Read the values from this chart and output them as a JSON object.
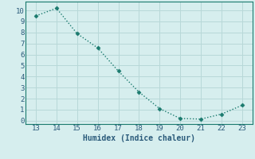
{
  "x": [
    13,
    14,
    15,
    16,
    17,
    18,
    19,
    20,
    21,
    22,
    23
  ],
  "y": [
    9.5,
    10.2,
    7.9,
    6.6,
    4.5,
    2.6,
    1.1,
    0.2,
    0.15,
    0.6,
    1.4
  ],
  "xlabel": "Humidex (Indice chaleur)",
  "xlim": [
    12.5,
    23.5
  ],
  "ylim": [
    -0.3,
    10.8
  ],
  "xticks": [
    13,
    14,
    15,
    16,
    17,
    18,
    19,
    20,
    21,
    22,
    23
  ],
  "yticks": [
    0,
    1,
    2,
    3,
    4,
    5,
    6,
    7,
    8,
    9,
    10
  ],
  "line_color": "#1a7a6e",
  "marker_color": "#1a7a6e",
  "bg_color": "#d6eeee",
  "grid_color": "#b8d8d8",
  "font_color": "#2a5a7a",
  "tick_fontsize": 6.5,
  "xlabel_fontsize": 7.0
}
